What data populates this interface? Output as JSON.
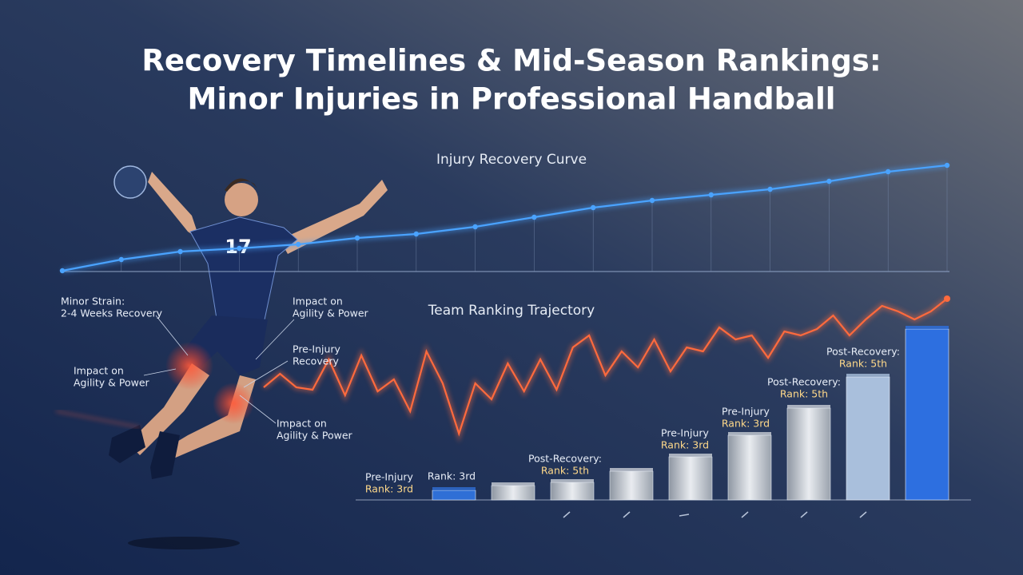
{
  "title": [
    "Recovery Timelines & Mid-Season Rankings:",
    "Minor Injuries in Professional Handball"
  ],
  "player": {
    "number": "17"
  },
  "chart_data": [
    {
      "type": "line",
      "title": "Injury Recovery Curve",
      "color": "#4aa3ff",
      "values": [
        1,
        15,
        25,
        29,
        34,
        42,
        47,
        56,
        68,
        80,
        89,
        96,
        103,
        113,
        125,
        133
      ]
    },
    {
      "type": "line",
      "title": "Team Ranking Trajectory",
      "color": "#ff6a3d",
      "values": [
        115,
        132,
        115,
        112,
        150,
        105,
        155,
        110,
        125,
        85,
        160,
        120,
        57,
        120,
        100,
        145,
        110,
        150,
        112,
        165,
        180,
        130,
        160,
        140,
        175,
        135,
        165,
        160,
        190,
        175,
        180,
        152,
        185,
        180,
        188,
        205,
        180,
        200,
        217,
        210,
        200,
        210,
        226
      ]
    },
    {
      "type": "bar",
      "values": [
        12,
        18,
        22,
        36,
        54,
        81,
        115,
        154,
        214
      ],
      "colors": [
        "#2f6fd6",
        "#c9ced6",
        "#c9ced6",
        "#c9ced6",
        "#c9ced6",
        "#c9ced6",
        "#c9ced6",
        "#a9bfdc",
        "#2d6fe0"
      ],
      "annotations": [
        {
          "lines": [
            "Pre-Injury",
            "Rank: 3rd"
          ]
        },
        {
          "lines": [
            "Rank: 3rd"
          ]
        },
        {
          "lines": [
            "Post-Recovery:",
            "Rank: 5th"
          ]
        },
        {
          "lines": [
            "Pre-Injury",
            "Rank: 3rd"
          ]
        },
        {
          "lines": [
            "Pre-Injury",
            "Rank: 3rd"
          ]
        },
        {
          "lines": [
            "Post-Recovery:",
            "Rank: 5th"
          ]
        },
        {
          "lines": [
            "Post-Recovery:",
            "Rank: 5th"
          ]
        }
      ]
    }
  ],
  "injury_notes": [
    {
      "lines": [
        "Minor Strain:",
        "2-4 Weeks Recovery"
      ]
    },
    {
      "lines": [
        "Impact on",
        "Agility & Power"
      ]
    },
    {
      "lines": [
        "Impact on",
        "Agility & Power"
      ]
    },
    {
      "lines": [
        "Pre-Injury",
        "Recovery"
      ]
    },
    {
      "lines": [
        "Impact on",
        "Agility & Power"
      ]
    }
  ]
}
